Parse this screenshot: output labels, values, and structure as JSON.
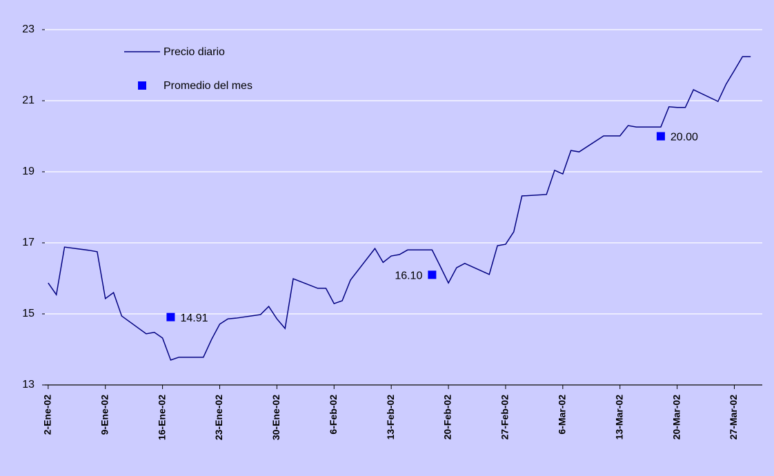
{
  "chart_data": {
    "type": "line",
    "x": [
      "2002-01-02",
      "2002-01-03",
      "2002-01-04",
      "2002-01-07",
      "2002-01-08",
      "2002-01-09",
      "2002-01-10",
      "2002-01-11",
      "2002-01-14",
      "2002-01-15",
      "2002-01-16",
      "2002-01-17",
      "2002-01-18",
      "2002-01-21",
      "2002-01-22",
      "2002-01-23",
      "2002-01-24",
      "2002-01-25",
      "2002-01-28",
      "2002-01-29",
      "2002-01-30",
      "2002-01-31",
      "2002-02-01",
      "2002-02-04",
      "2002-02-05",
      "2002-02-06",
      "2002-02-07",
      "2002-02-08",
      "2002-02-11",
      "2002-02-12",
      "2002-02-13",
      "2002-02-14",
      "2002-02-15",
      "2002-02-18",
      "2002-02-19",
      "2002-02-20",
      "2002-02-21",
      "2002-02-22",
      "2002-02-25",
      "2002-02-26",
      "2002-02-27",
      "2002-02-28",
      "2002-03-01",
      "2002-03-04",
      "2002-03-05",
      "2002-03-06",
      "2002-03-07",
      "2002-03-08",
      "2002-03-11",
      "2002-03-12",
      "2002-03-13",
      "2002-03-14",
      "2002-03-15",
      "2002-03-18",
      "2002-03-19",
      "2002-03-20",
      "2002-03-21",
      "2002-03-22",
      "2002-03-25",
      "2002-03-26",
      "2002-03-27",
      "2002-03-28",
      "2002-03-29"
    ],
    "series": [
      {
        "name": "Precio diario",
        "type": "line",
        "color": "#000080",
        "values": [
          15.87,
          15.54,
          16.88,
          16.79,
          16.75,
          15.43,
          15.6,
          14.94,
          14.44,
          14.48,
          14.32,
          13.7,
          13.78,
          13.78,
          14.28,
          14.71,
          14.86,
          14.88,
          14.98,
          15.21,
          14.86,
          14.59,
          15.99,
          15.72,
          15.72,
          15.29,
          15.37,
          15.95,
          16.84,
          16.45,
          16.63,
          16.67,
          16.8,
          16.8,
          16.34,
          15.87,
          16.3,
          16.42,
          16.11,
          16.92,
          16.96,
          17.31,
          18.32,
          18.36,
          19.04,
          18.94,
          19.6,
          19.56,
          20.01,
          20.01,
          20.01,
          20.3,
          20.26,
          20.26,
          20.83,
          20.81,
          20.81,
          21.31,
          20.98,
          21.47,
          21.85,
          22.24,
          22.24
        ]
      },
      {
        "name": "Promedio del mes",
        "type": "scatter",
        "color": "#0000ff",
        "x": [
          "2002-01-17",
          "2002-02-18",
          "2002-03-18"
        ],
        "values": [
          14.91,
          16.1,
          20
        ],
        "value_labels": [
          "14.91",
          "16.10",
          "20.00"
        ]
      }
    ],
    "xlim": [
      "2002-01-01",
      "2002-03-30"
    ],
    "xticks": [
      {
        "value": "2002-01-02",
        "label": "2-Ene-02"
      },
      {
        "value": "2002-01-09",
        "label": "9-Ene-02"
      },
      {
        "value": "2002-01-16",
        "label": "16-Ene-02"
      },
      {
        "value": "2002-01-23",
        "label": "23-Ene-02"
      },
      {
        "value": "2002-01-30",
        "label": "30-Ene-02"
      },
      {
        "value": "2002-02-06",
        "label": "6-Feb-02"
      },
      {
        "value": "2002-02-13",
        "label": "13-Feb-02"
      },
      {
        "value": "2002-02-20",
        "label": "20-Feb-02"
      },
      {
        "value": "2002-02-27",
        "label": "27-Feb-02"
      },
      {
        "value": "2002-03-06",
        "label": "6-Mar-02"
      },
      {
        "value": "2002-03-13",
        "label": "13-Mar-02"
      },
      {
        "value": "2002-03-20",
        "label": "20-Mar-02"
      },
      {
        "value": "2002-03-27",
        "label": "27-Mar-02"
      }
    ],
    "ylim": [
      13,
      23
    ],
    "yticks": [
      13,
      15,
      17,
      19,
      21,
      23
    ],
    "grid": true,
    "legend": "upper left"
  }
}
